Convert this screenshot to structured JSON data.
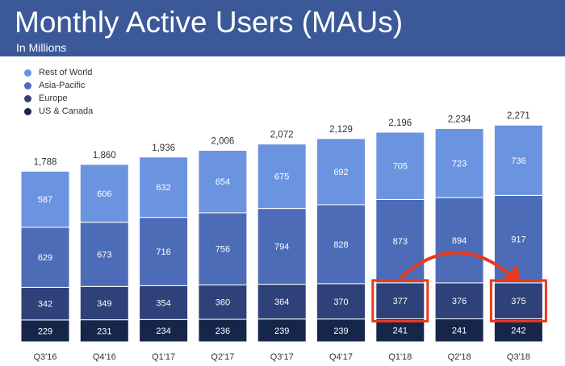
{
  "header": {
    "title": "Monthly Active Users (MAUs)",
    "subtitle": "In Millions"
  },
  "colors": {
    "header_bg": "#3b5998",
    "rest_of_world": "#6b94e0",
    "asia_pacific": "#4d6cb8",
    "europe": "#2e4178",
    "us_canada": "#16264a",
    "highlight": "#e8391c"
  },
  "chart_data": {
    "type": "bar",
    "stacked": true,
    "categories": [
      "Q3'16",
      "Q4'16",
      "Q1'17",
      "Q2'17",
      "Q3'17",
      "Q4'17",
      "Q1'18",
      "Q2'18",
      "Q3'18"
    ],
    "series": [
      {
        "name": "US & Canada",
        "values": [
          229,
          231,
          234,
          236,
          239,
          239,
          241,
          241,
          242
        ]
      },
      {
        "name": "Europe",
        "values": [
          342,
          349,
          354,
          360,
          364,
          370,
          377,
          376,
          375
        ]
      },
      {
        "name": "Asia-Pacific",
        "values": [
          629,
          673,
          716,
          756,
          794,
          828,
          873,
          894,
          917
        ]
      },
      {
        "name": "Rest of World",
        "values": [
          587,
          606,
          632,
          654,
          675,
          692,
          705,
          723,
          736
        ]
      }
    ],
    "totals": [
      "1,788",
      "1,860",
      "1,936",
      "2,006",
      "2,072",
      "2,129",
      "2,196",
      "2,234",
      "2,271"
    ],
    "legend": [
      "Rest of World",
      "Asia-Pacific",
      "Europe",
      "US & Canada"
    ],
    "legend_position": "top-left",
    "highlight": {
      "series": "Europe",
      "from_category": "Q1'18",
      "to_category": "Q3'18"
    },
    "grid": false
  }
}
